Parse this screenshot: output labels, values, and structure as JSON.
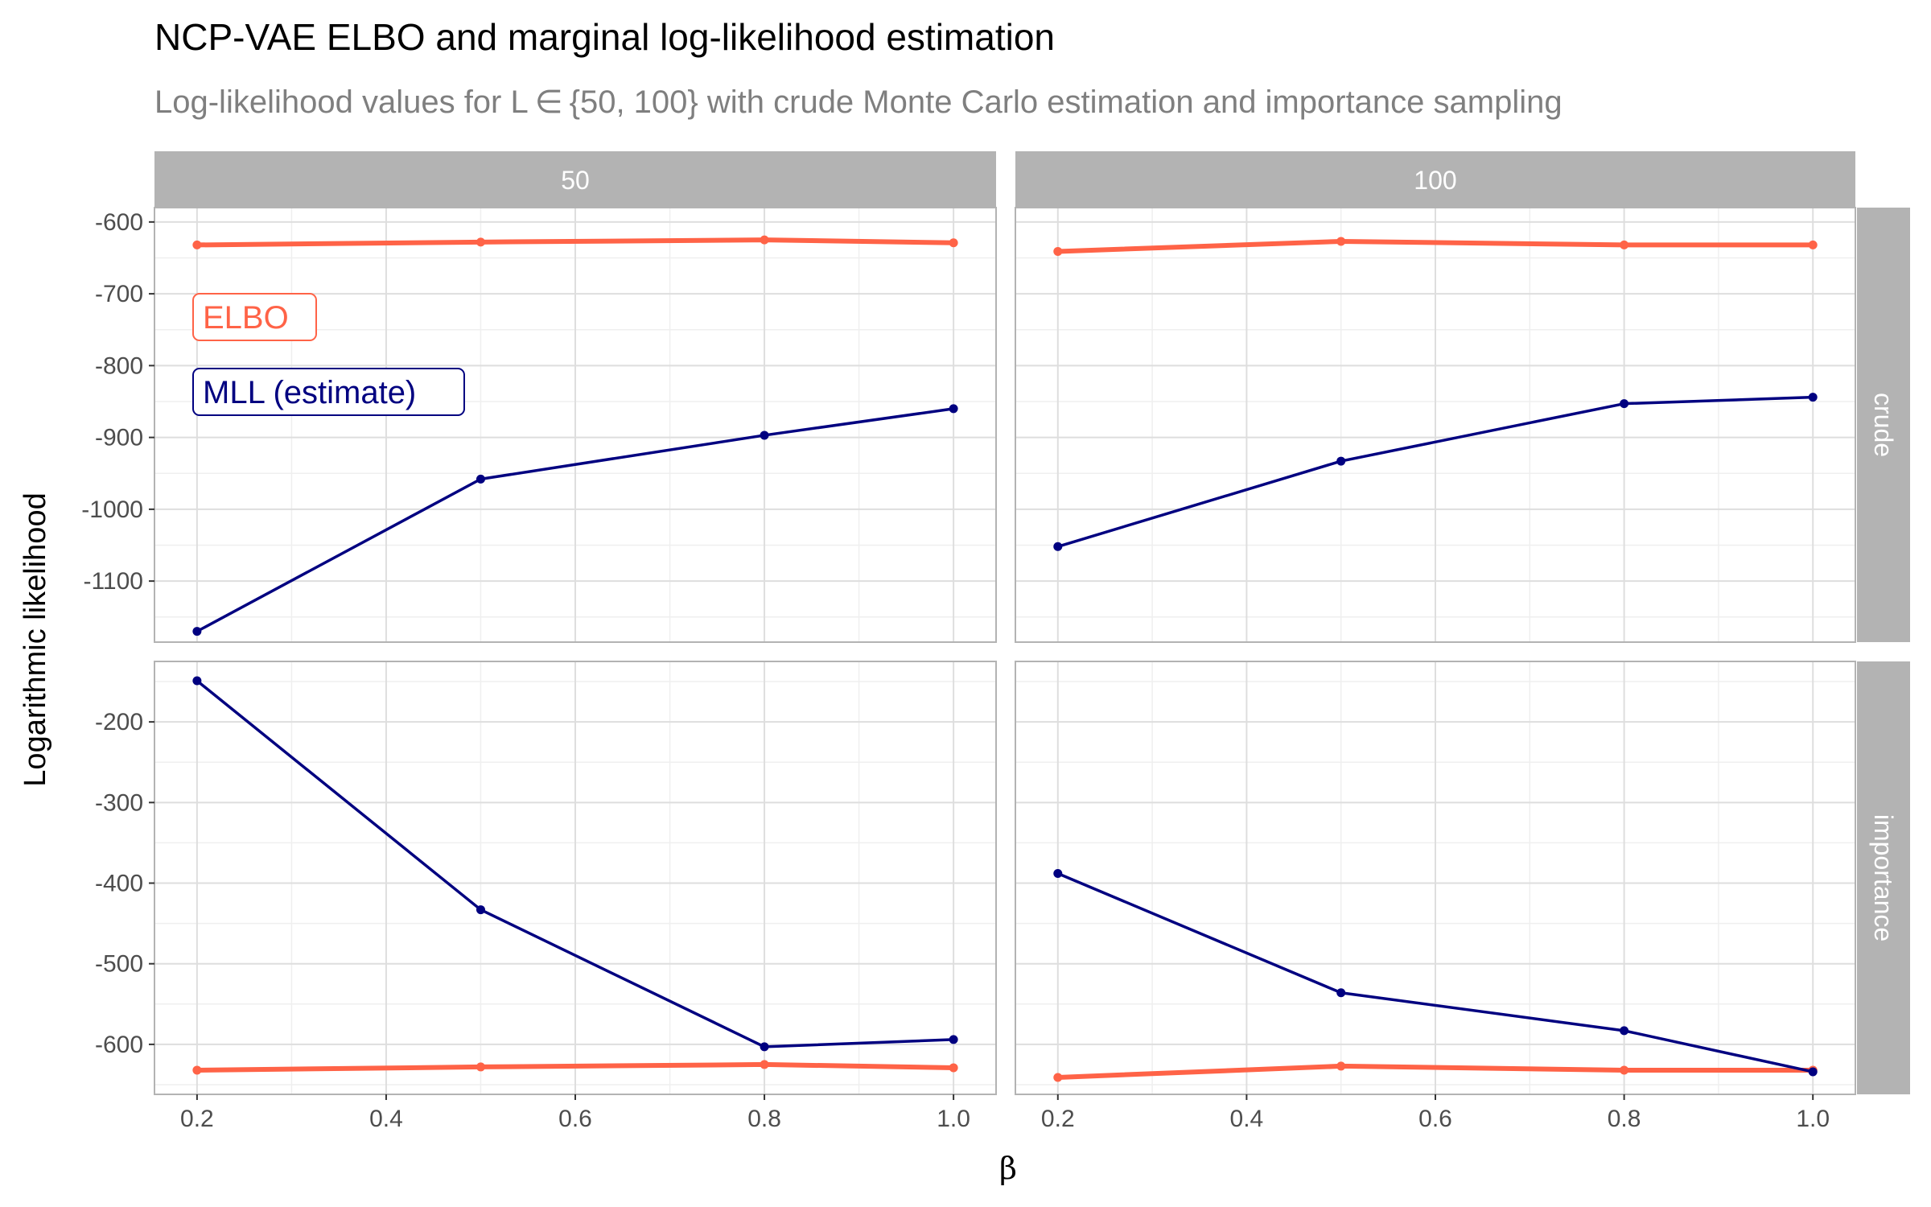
{
  "chart_data": {
    "type": "line",
    "title": "NCP-VAE ELBO and marginal log-likelihood estimation",
    "subtitle": "Log-likelihood values for L ∈ {50, 100} with crude Monte Carlo estimation and importance sampling",
    "xlabel": "β",
    "ylabel": "Logarithmic likelihood",
    "x_ticks": [
      "0.2",
      "0.4",
      "0.6",
      "0.8",
      "1.0"
    ],
    "xlim": [
      0.155,
      1.045
    ],
    "grid": true,
    "facets": {
      "columns": [
        "50",
        "100"
      ],
      "rows": [
        "crude",
        "importance"
      ]
    },
    "legend": {
      "placement": "inside-top-left",
      "entries": [
        {
          "label": "ELBO",
          "color": "#FF6347"
        },
        {
          "label": "MLL (estimate)",
          "color": "#000080"
        }
      ]
    },
    "panels": [
      {
        "column": "50",
        "row": "crude",
        "ylim": [
          -1185,
          -580
        ],
        "y_ticks": [
          "-600",
          "-700",
          "-800",
          "-900",
          "-1000",
          "-1100"
        ],
        "series": [
          {
            "name": "ELBO",
            "x": [
              0.2,
              0.5,
              0.8,
              1.0
            ],
            "y": [
              -632,
              -628,
              -625,
              -629
            ]
          },
          {
            "name": "MLL (estimate)",
            "x": [
              0.2,
              0.5,
              0.8,
              1.0
            ],
            "y": [
              -1170,
              -958,
              -897,
              -860
            ]
          }
        ]
      },
      {
        "column": "100",
        "row": "crude",
        "ylim": [
          -1185,
          -580
        ],
        "y_ticks": [],
        "series": [
          {
            "name": "ELBO",
            "x": [
              0.2,
              0.5,
              0.8,
              1.0
            ],
            "y": [
              -641,
              -627,
              -632,
              -632
            ]
          },
          {
            "name": "MLL (estimate)",
            "x": [
              0.2,
              0.5,
              0.8,
              1.0
            ],
            "y": [
              -1052,
              -933,
              -853,
              -844
            ]
          }
        ]
      },
      {
        "column": "50",
        "row": "importance",
        "ylim": [
          -662,
          -125
        ],
        "y_ticks": [
          "-200",
          "-300",
          "-400",
          "-500",
          "-600"
        ],
        "series": [
          {
            "name": "ELBO",
            "x": [
              0.2,
              0.5,
              0.8,
              1.0
            ],
            "y": [
              -632,
              -628,
              -625,
              -629
            ]
          },
          {
            "name": "MLL (estimate)",
            "x": [
              0.2,
              0.5,
              0.8,
              1.0
            ],
            "y": [
              -149,
              -433,
              -603,
              -594
            ]
          }
        ]
      },
      {
        "column": "100",
        "row": "importance",
        "ylim": [
          -662,
          -125
        ],
        "y_ticks": [],
        "series": [
          {
            "name": "ELBO",
            "x": [
              0.2,
              0.5,
              0.8,
              1.0
            ],
            "y": [
              -641,
              -627,
              -632,
              -632
            ]
          },
          {
            "name": "MLL (estimate)",
            "x": [
              0.2,
              0.5,
              0.8,
              1.0
            ],
            "y": [
              -388,
              -536,
              -583,
              -634
            ]
          }
        ]
      }
    ]
  },
  "colors": {
    "elbo": "#FF6347",
    "mll": "#000080",
    "strip": "#B3B3B3",
    "grid_major": "#DEDEDE",
    "grid_minor": "#EFEFEF",
    "panel_border": "#B3B3B3"
  }
}
